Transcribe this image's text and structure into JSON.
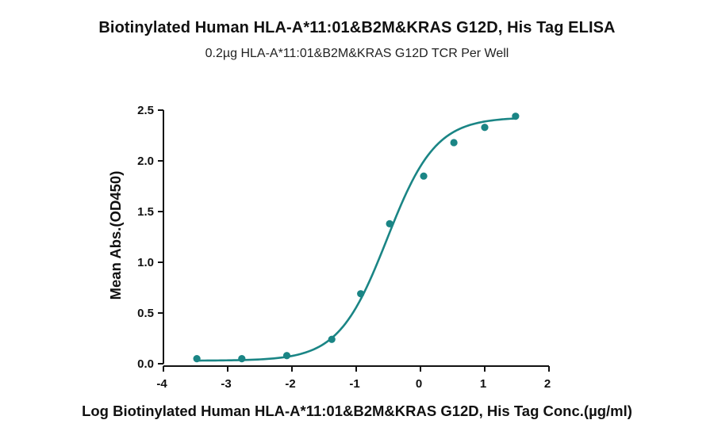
{
  "colors": {
    "series": "#1a8585",
    "axis": "#111111",
    "text": "#111111"
  },
  "chart_data": {
    "type": "scatter",
    "title": "Biotinylated Human HLA-A*11:01&B2M&KRAS G12D, His Tag ELISA",
    "subtitle": "0.2µg HLA-A*11:01&B2M&KRAS G12D TCR Per Well",
    "xlabel": "Log Biotinylated Human HLA-A*11:01&B2M&KRAS G12D, His Tag Conc.(µg/ml)",
    "ylabel": "Mean Abs.(OD450)",
    "xlim": [
      -4,
      2
    ],
    "ylim": [
      0,
      2.5
    ],
    "xticks": [
      -4,
      -3,
      -2,
      -1,
      0,
      1,
      2
    ],
    "yticks": [
      0.0,
      0.5,
      1.0,
      1.5,
      2.0,
      2.5
    ],
    "xtick_labels": [
      "-4",
      "-3",
      "-2",
      "-1",
      "0",
      "1",
      "2"
    ],
    "ytick_labels": [
      "0.0",
      "0.5",
      "1.0",
      "1.5",
      "2.0",
      "2.5"
    ],
    "grid": false,
    "legend": "none",
    "series": [
      {
        "points": [
          {
            "x": -3.48,
            "y": 0.05
          },
          {
            "x": -2.78,
            "y": 0.05
          },
          {
            "x": -2.08,
            "y": 0.08
          },
          {
            "x": -1.38,
            "y": 0.24
          },
          {
            "x": -0.93,
            "y": 0.69
          },
          {
            "x": -0.48,
            "y": 1.38
          },
          {
            "x": 0.05,
            "y": 1.85
          },
          {
            "x": 0.52,
            "y": 2.18
          },
          {
            "x": 1.0,
            "y": 2.33
          },
          {
            "x": 1.48,
            "y": 2.44
          }
        ],
        "fit": {
          "model": "4PL",
          "bottom": 0.03,
          "top": 2.43,
          "logEC50": -0.52,
          "hill": 1.15,
          "x_range": [
            -3.48,
            1.48
          ]
        }
      }
    ]
  }
}
